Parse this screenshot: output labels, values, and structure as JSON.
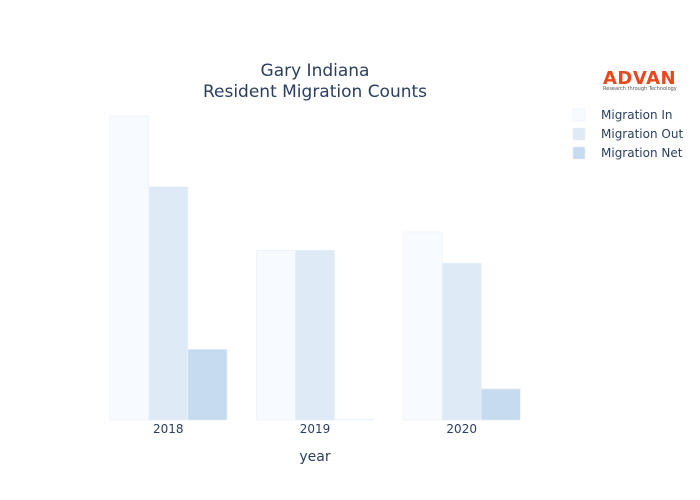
{
  "logo": {
    "name": "ADVAN",
    "tagline": "Research through Technology",
    "color": "#e8481c"
  },
  "chart_data": {
    "type": "bar",
    "title_lines": [
      "Gary Indiana",
      "Resident Migration Counts"
    ],
    "xlabel": "year",
    "ylabel": "",
    "categories": [
      "2018",
      "2019",
      "2020"
    ],
    "series": [
      {
        "name": "Migration In",
        "color": "#f7fbff",
        "values": [
          2150,
          1200,
          1330
        ]
      },
      {
        "name": "Migration Out",
        "color": "#deebf7",
        "values": [
          1650,
          1200,
          1110
        ]
      },
      {
        "name": "Migration Net",
        "color": "#c6dbef",
        "values": [
          500,
          3,
          220
        ]
      }
    ],
    "ylim": [
      0,
      2150
    ],
    "y_axis_visible": false,
    "grid": false,
    "legend_position": "top-right"
  }
}
